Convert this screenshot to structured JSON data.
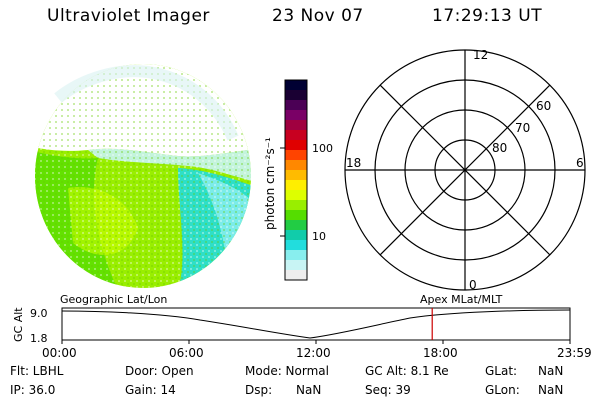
{
  "header": {
    "title": "Ultraviolet Imager",
    "date": "23 Nov 07",
    "time": "17:29:13 UT"
  },
  "colorbar": {
    "label": "photon cm⁻²s⁻¹",
    "ticks": [
      "100",
      "10"
    ],
    "colors": [
      "#000033",
      "#1a0033",
      "#4b0055",
      "#7a0066",
      "#a00040",
      "#c80020",
      "#e00000",
      "#ff4400",
      "#ff8800",
      "#ffbb00",
      "#ffee00",
      "#ddff00",
      "#99ee00",
      "#55dd00",
      "#22cc44",
      "#11ccaa",
      "#22dddd",
      "#88eeee",
      "#c8f4f4",
      "#eeeeee"
    ]
  },
  "polar": {
    "mlt_labels": [
      "12",
      "18",
      "6",
      "0"
    ],
    "lat_labels": [
      "60",
      "70",
      "80"
    ]
  },
  "timeline": {
    "axis_label": "GC Alt",
    "y_ticks": [
      "9.0",
      "1.8"
    ],
    "left_label": "Geographic Lat/Lon",
    "right_label": "Apex MLat/MLT",
    "x_ticks": [
      "00:00",
      "06:00",
      "12:00",
      "18:00",
      "23:59"
    ],
    "marker_time_hours": 17.49,
    "marker_color": "#cc0000"
  },
  "info": {
    "filter": "Flt: LBHL",
    "ip": "IP: 36.0",
    "door": "Door: Open",
    "gain": "Gain: 14",
    "mode": "Mode: Normal",
    "dsp": "Dsp:",
    "dsp_val": "NaN",
    "gc_alt": "GC Alt: 8.1 Re",
    "seq": "Seq: 39",
    "glat": "GLat:",
    "glat_val": "NaN",
    "glon": "GLon:",
    "glon_val": "NaN"
  }
}
